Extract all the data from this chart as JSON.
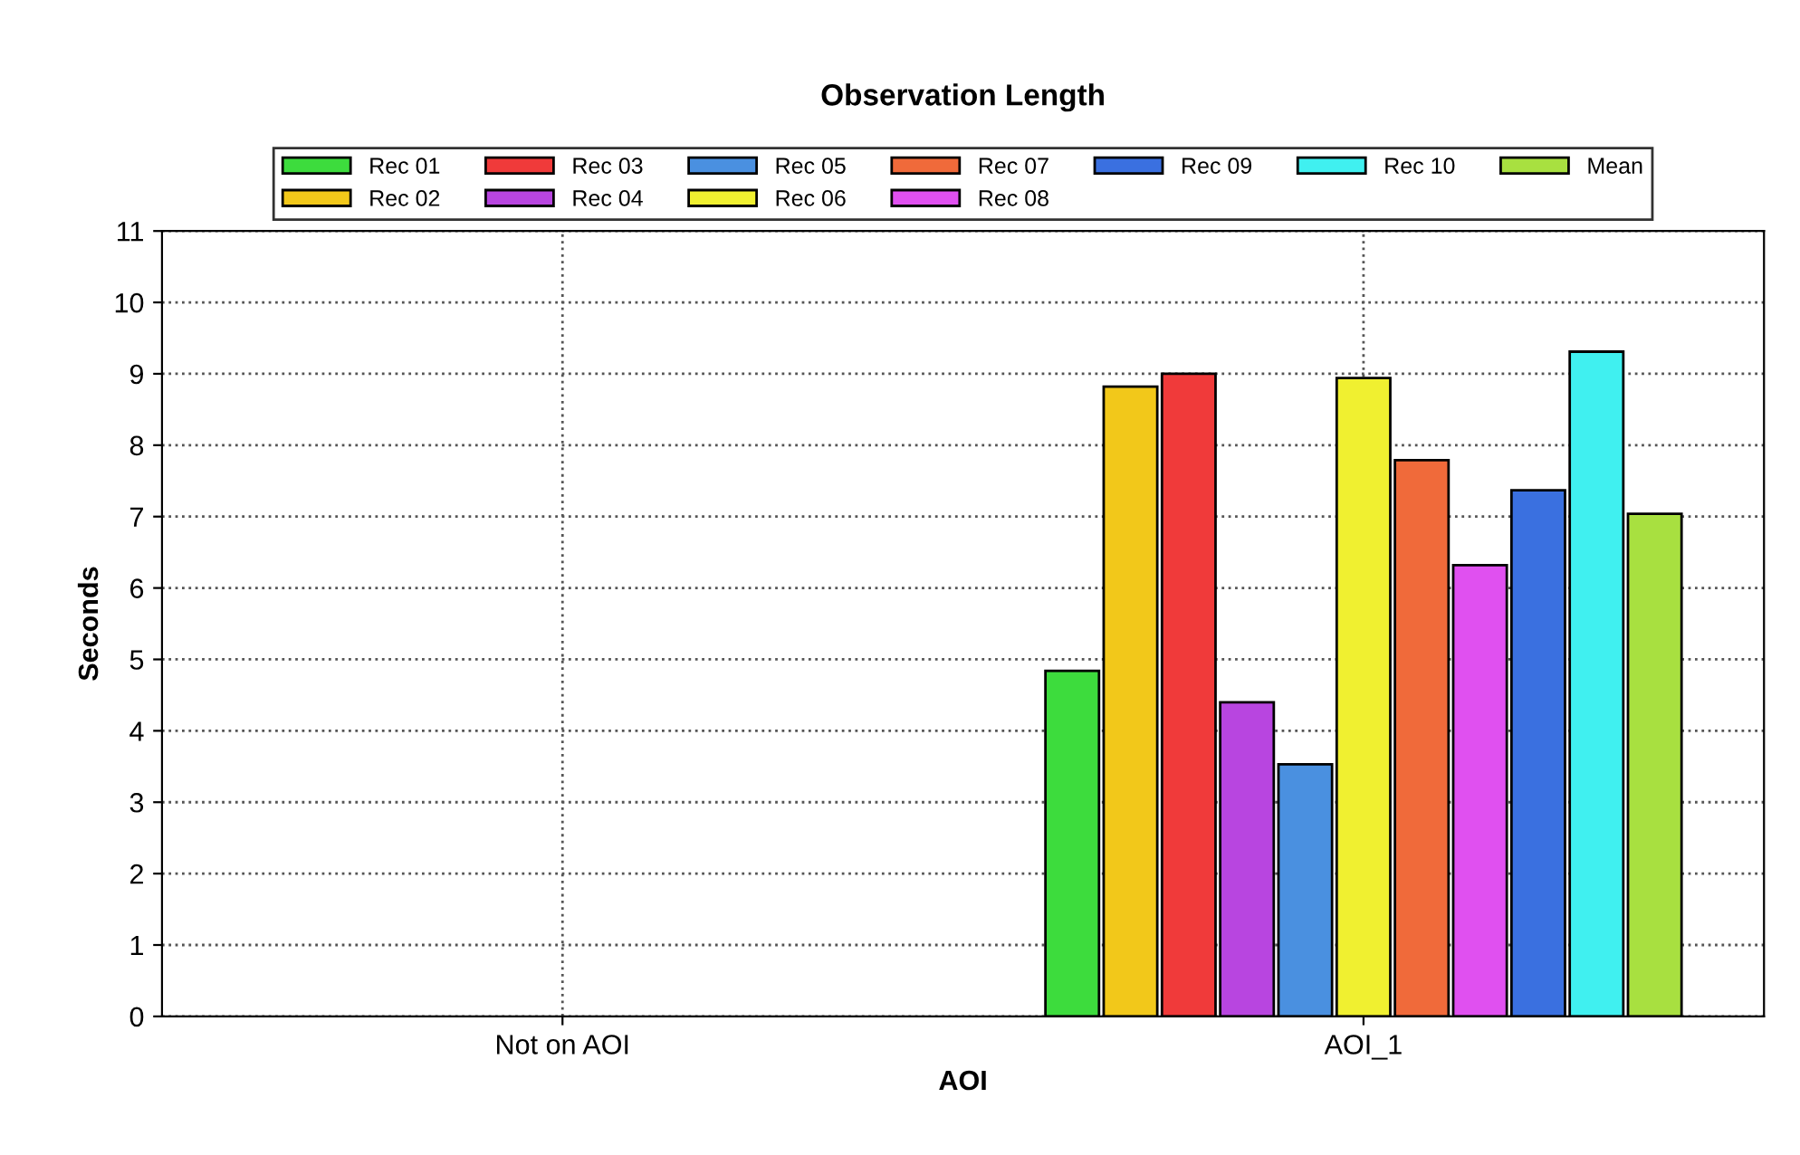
{
  "chart_data": {
    "type": "bar",
    "title": "Observation Length",
    "xlabel": "AOI",
    "ylabel": "Seconds",
    "categories": [
      "Not on AOI",
      "AOI_1"
    ],
    "series": [
      {
        "name": "Rec 01",
        "color": "#3ddc3d",
        "values": [
          null,
          4.84
        ]
      },
      {
        "name": "Rec 02",
        "color": "#f2c81a",
        "values": [
          null,
          8.82
        ]
      },
      {
        "name": "Rec 03",
        "color": "#f03a3a",
        "values": [
          null,
          9.0
        ]
      },
      {
        "name": "Rec 04",
        "color": "#b845e0",
        "values": [
          null,
          4.4
        ]
      },
      {
        "name": "Rec 05",
        "color": "#4a90e0",
        "values": [
          null,
          3.53
        ]
      },
      {
        "name": "Rec 06",
        "color": "#f0f030",
        "values": [
          null,
          8.94
        ]
      },
      {
        "name": "Rec 07",
        "color": "#f06a3a",
        "values": [
          null,
          7.79
        ]
      },
      {
        "name": "Rec 08",
        "color": "#e050f0",
        "values": [
          null,
          6.32
        ]
      },
      {
        "name": "Rec 09",
        "color": "#3a70e0",
        "values": [
          null,
          7.37
        ]
      },
      {
        "name": "Rec 10",
        "color": "#40f0f0",
        "values": [
          null,
          9.31
        ]
      },
      {
        "name": "Mean",
        "color": "#a8e040",
        "values": [
          null,
          7.04
        ]
      }
    ],
    "ylim": [
      0,
      11
    ],
    "yticks": [
      0,
      1,
      2,
      3,
      4,
      5,
      6,
      7,
      8,
      9,
      10,
      11
    ],
    "grid": true,
    "legend": "top"
  }
}
